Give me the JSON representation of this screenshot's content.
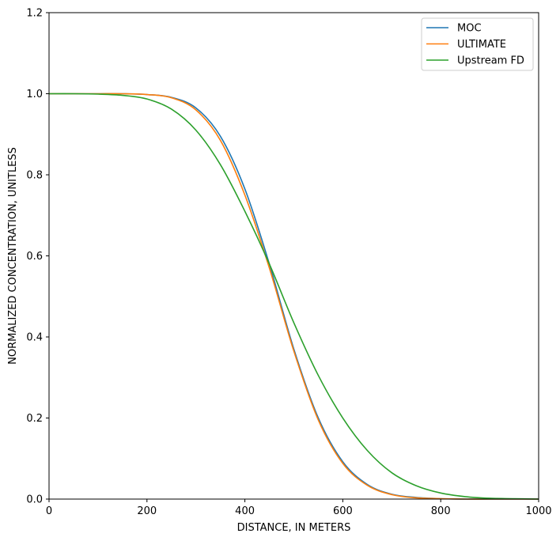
{
  "chart_data": {
    "type": "line",
    "title": "",
    "xlabel": "DISTANCE, IN METERS",
    "ylabel": "NORMALIZED CONCENTRATION, UNITLESS",
    "xlim": [
      0,
      1000
    ],
    "ylim": [
      0,
      1.2
    ],
    "xticks": [
      0,
      200,
      400,
      600,
      800,
      1000
    ],
    "yticks": [
      0.0,
      0.2,
      0.4,
      0.6,
      0.8,
      1.0,
      1.2
    ],
    "xtick_labels": [
      "0",
      "200",
      "400",
      "600",
      "800",
      "1000"
    ],
    "ytick_labels": [
      "0.0",
      "0.2",
      "0.4",
      "0.6",
      "0.8",
      "1.0",
      "1.2"
    ],
    "grid": false,
    "legend_position": "top-right",
    "x": [
      0,
      50,
      100,
      150,
      200,
      250,
      300,
      350,
      400,
      450,
      500,
      550,
      600,
      650,
      700,
      750,
      800,
      850,
      900,
      950,
      1000
    ],
    "series": [
      {
        "name": "MOC",
        "color": "#1f77b4",
        "values": [
          1.0,
          1.0,
          1.0,
          1.0,
          0.998,
          0.991,
          0.965,
          0.895,
          0.765,
          0.58,
          0.37,
          0.2,
          0.092,
          0.036,
          0.012,
          0.004,
          0.001,
          0.0,
          0.0,
          0.0,
          0.0
        ]
      },
      {
        "name": "ULTIMATE",
        "color": "#ff7f0e",
        "values": [
          1.0,
          1.0,
          1.0,
          1.0,
          0.998,
          0.99,
          0.96,
          0.885,
          0.75,
          0.57,
          0.365,
          0.195,
          0.088,
          0.034,
          0.011,
          0.003,
          0.001,
          0.0,
          0.0,
          0.0,
          0.0
        ]
      },
      {
        "name": "Upstream FD",
        "color": "#2ca02c",
        "values": [
          1.0,
          1.0,
          0.999,
          0.996,
          0.987,
          0.962,
          0.91,
          0.825,
          0.71,
          0.58,
          0.435,
          0.305,
          0.2,
          0.12,
          0.065,
          0.033,
          0.015,
          0.006,
          0.002,
          0.001,
          0.0
        ]
      }
    ]
  }
}
